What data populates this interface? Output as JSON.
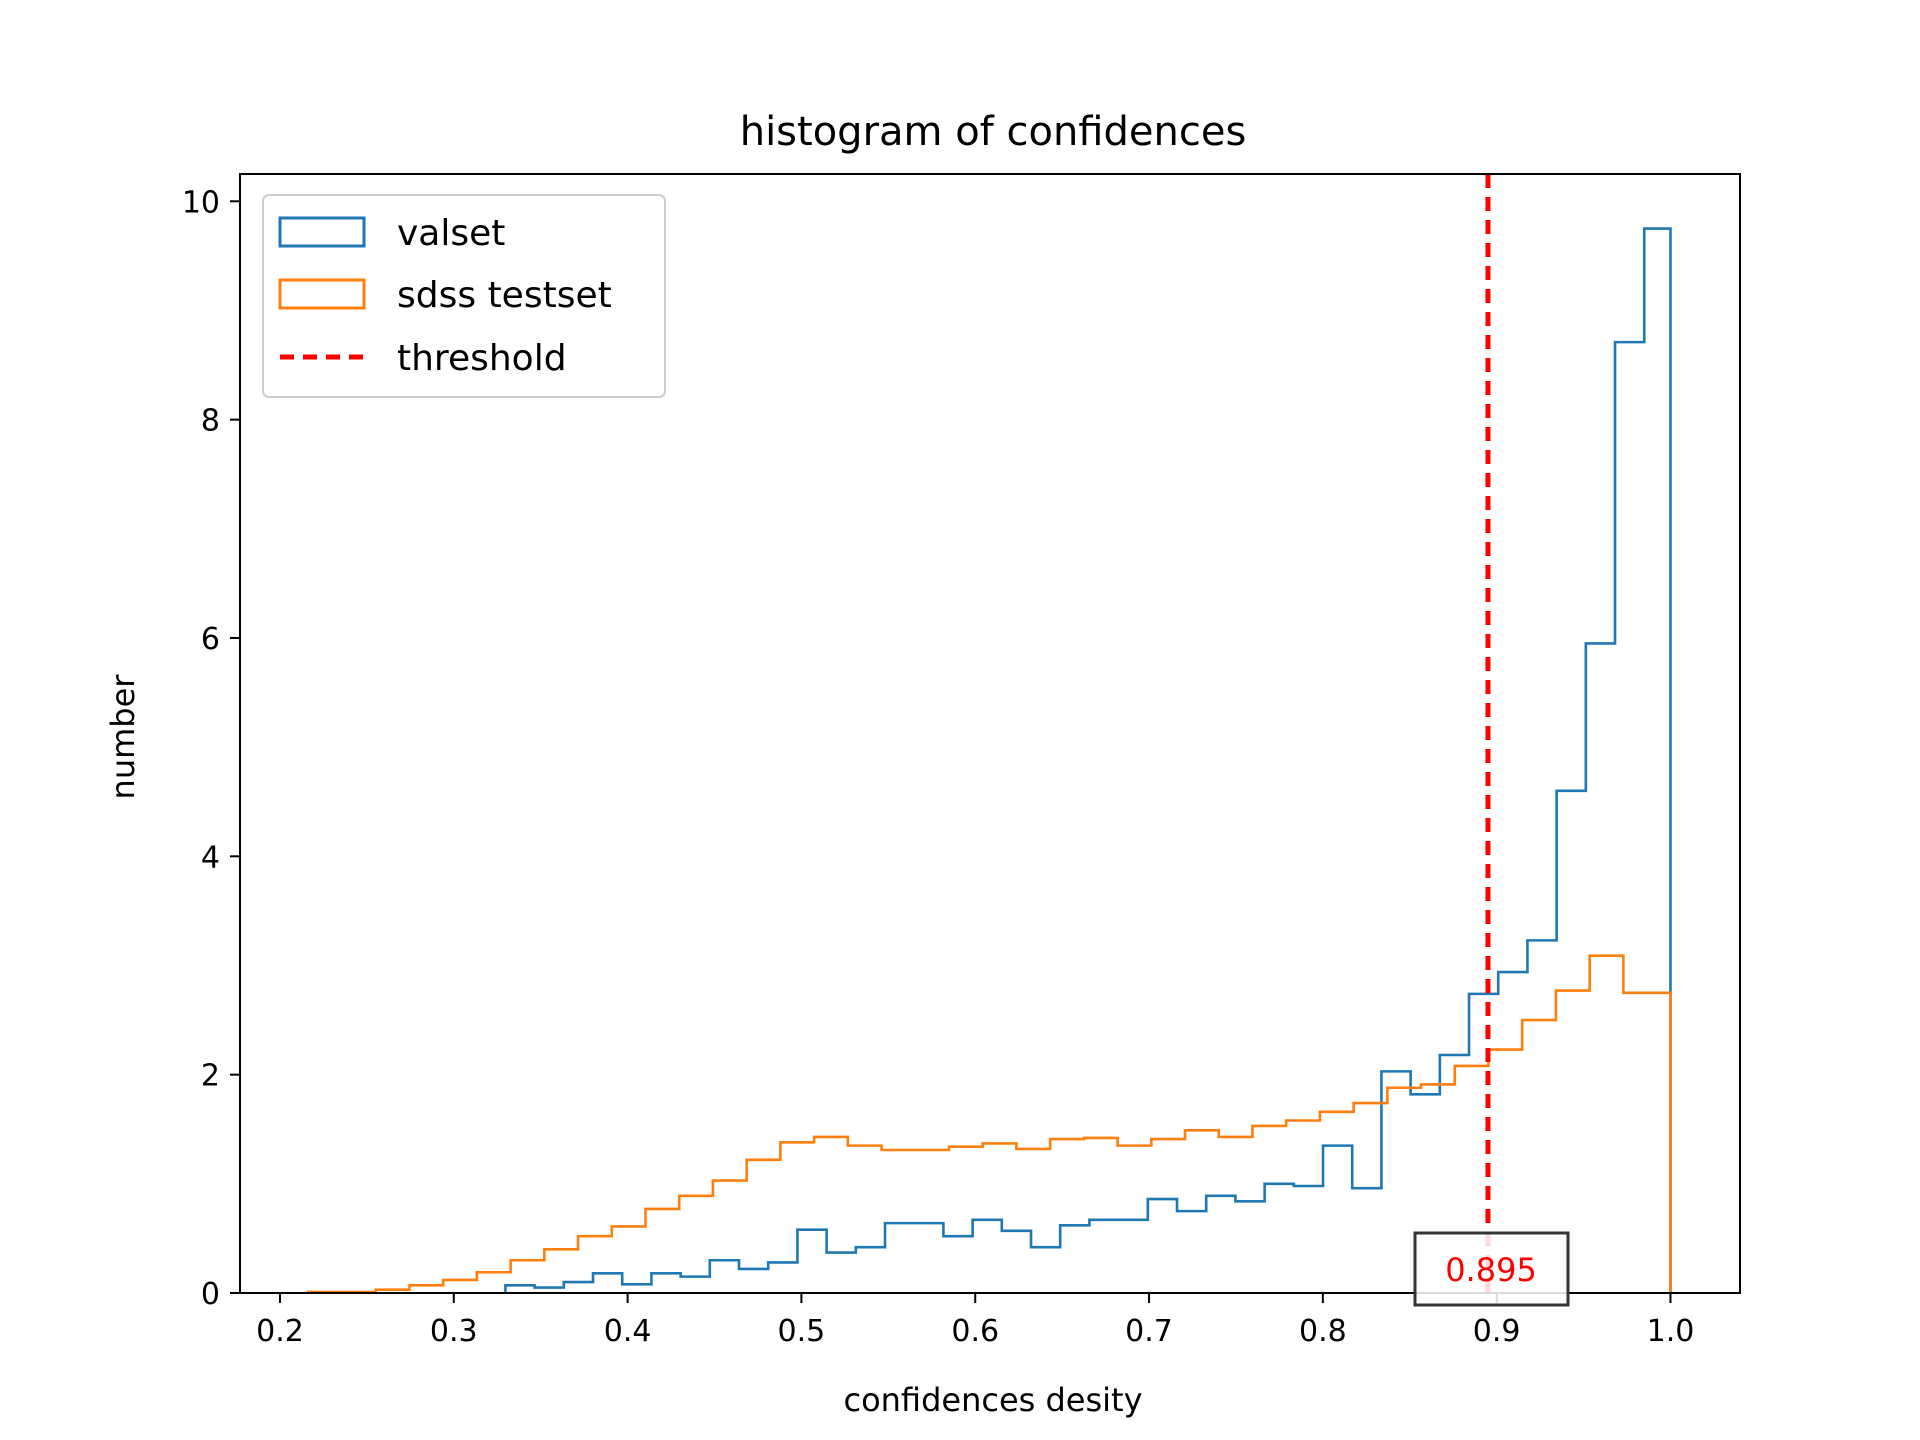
{
  "chart_data": {
    "type": "histogram",
    "title": "histogram of confidences",
    "xlabel": "confidences desity",
    "ylabel": "number",
    "xlim": [
      0.177,
      1.04
    ],
    "ylim": [
      0,
      10.25
    ],
    "x_ticks": [
      "0.2",
      "0.3",
      "0.4",
      "0.5",
      "0.6",
      "0.7",
      "0.8",
      "0.9",
      "1.0"
    ],
    "y_ticks": [
      "0",
      "2",
      "4",
      "6",
      "8",
      "10"
    ],
    "grid": false,
    "legend_position": "upper-left",
    "colors": {
      "valset": "#1f77b4",
      "sdss_testset": "#ff7f0e",
      "threshold": "#ff0000"
    },
    "series": [
      {
        "name": "valset",
        "type": "step",
        "bin_edges": [
          0.3297,
          0.3465,
          0.3633,
          0.3801,
          0.3969,
          0.4137,
          0.4305,
          0.4473,
          0.4641,
          0.4809,
          0.4977,
          0.5145,
          0.5313,
          0.5481,
          0.5649,
          0.5817,
          0.5985,
          0.6153,
          0.6321,
          0.6489,
          0.6657,
          0.6825,
          0.6993,
          0.7161,
          0.7329,
          0.7497,
          0.7665,
          0.7833,
          0.8001,
          0.8169,
          0.8337,
          0.8505,
          0.8673,
          0.8841,
          0.9009,
          0.9177,
          0.9345,
          0.9513,
          0.9681,
          0.9849,
          1.0
        ],
        "values": [
          0.07,
          0.05,
          0.1,
          0.18,
          0.08,
          0.18,
          0.15,
          0.3,
          0.22,
          0.28,
          0.58,
          0.37,
          0.42,
          0.64,
          0.64,
          0.52,
          0.67,
          0.57,
          0.42,
          0.62,
          0.67,
          0.67,
          0.86,
          0.75,
          0.89,
          0.84,
          1.0,
          0.98,
          1.35,
          0.96,
          2.03,
          1.82,
          2.18,
          2.74,
          2.94,
          3.23,
          4.6,
          5.95,
          8.71,
          9.75
        ]
      },
      {
        "name": "sdss testset",
        "type": "step",
        "bin_edges": [
          0.2163,
          0.2357,
          0.2551,
          0.2745,
          0.2939,
          0.3133,
          0.3327,
          0.3521,
          0.3715,
          0.3909,
          0.4103,
          0.4297,
          0.4491,
          0.4685,
          0.4879,
          0.5073,
          0.5267,
          0.5461,
          0.5655,
          0.5849,
          0.6043,
          0.6237,
          0.6431,
          0.6625,
          0.6819,
          0.7013,
          0.7207,
          0.7401,
          0.7595,
          0.7789,
          0.7983,
          0.8177,
          0.8371,
          0.8565,
          0.8759,
          0.8953,
          0.9147,
          0.9341,
          0.9535,
          0.9729,
          0.9923,
          1.0
        ],
        "values": [
          0.01,
          0.01,
          0.03,
          0.07,
          0.12,
          0.19,
          0.3,
          0.4,
          0.52,
          0.61,
          0.77,
          0.89,
          1.03,
          1.22,
          1.38,
          1.43,
          1.35,
          1.31,
          1.31,
          1.34,
          1.37,
          1.32,
          1.41,
          1.42,
          1.35,
          1.41,
          1.49,
          1.43,
          1.53,
          1.58,
          1.66,
          1.74,
          1.88,
          1.91,
          2.08,
          2.23,
          2.5,
          2.77,
          3.09,
          2.75,
          2.75
        ]
      }
    ],
    "threshold": {
      "name": "threshold",
      "value": 0.895,
      "label": "0.895"
    }
  }
}
